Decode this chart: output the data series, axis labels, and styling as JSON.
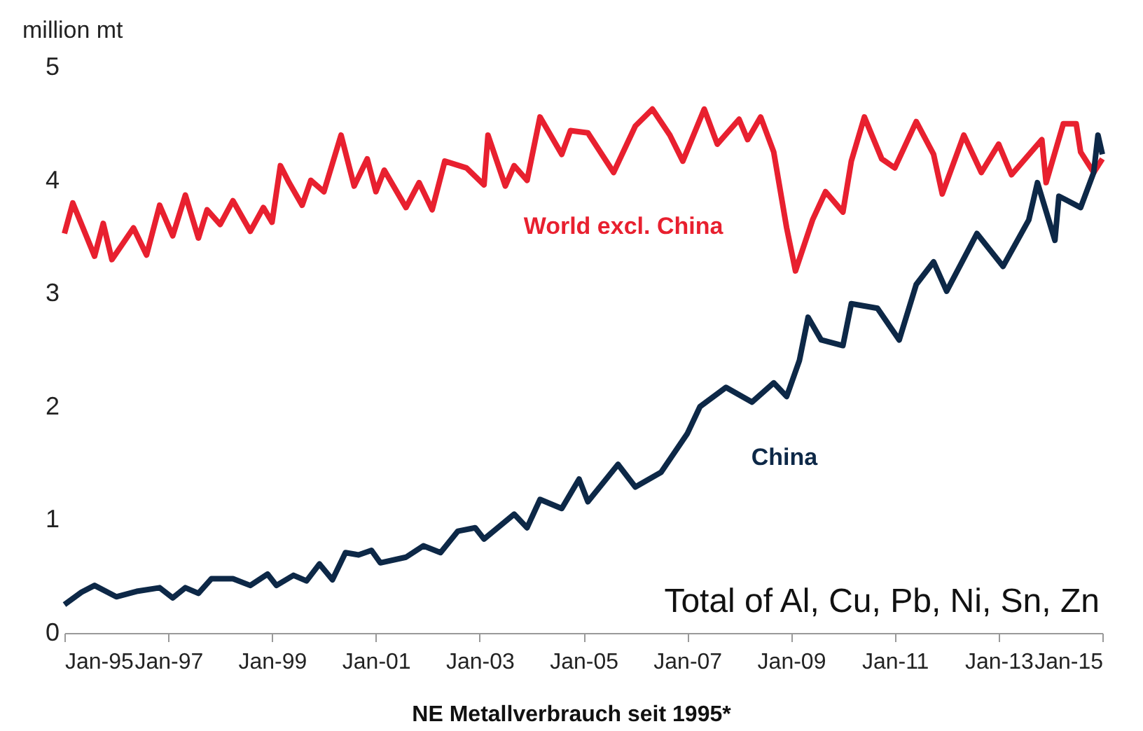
{
  "chart_data": {
    "type": "line",
    "ylabel": "million mt",
    "annotations": [
      "Total of  Al, Cu, Pb, Ni, Sn, Zn",
      "NE Metallverbrauch seit 1995*"
    ],
    "xlim": [
      "1995-01",
      "2015-01"
    ],
    "xticks": [
      {
        "value": "1995-01",
        "label": "Jan-95"
      },
      {
        "value": "1997-01",
        "label": "Jan-97"
      },
      {
        "value": "1999-01",
        "label": "Jan-99"
      },
      {
        "value": "2001-01",
        "label": "Jan-01"
      },
      {
        "value": "2003-01",
        "label": "Jan-03"
      },
      {
        "value": "2005-01",
        "label": "Jan-05"
      },
      {
        "value": "2007-01",
        "label": "Jan-07"
      },
      {
        "value": "2009-01",
        "label": "Jan-09"
      },
      {
        "value": "2011-01",
        "label": "Jan-11"
      },
      {
        "value": "2013-01",
        "label": "Jan-13"
      },
      {
        "value": "2015-01",
        "label": "Jan-15"
      }
    ],
    "ylim": [
      0,
      5
    ],
    "yticks": [
      0,
      1,
      2,
      3,
      4,
      5
    ],
    "grid": false,
    "marker": "none",
    "line_style": "solid",
    "series": [
      {
        "name": "World excl. China",
        "color": "#e8202f",
        "x": [
          "1995-01",
          "1995-03",
          "1995-08",
          "1995-10",
          "1995-12",
          "1996-05",
          "1996-08",
          "1996-11",
          "1997-02",
          "1997-05",
          "1997-08",
          "1997-10",
          "1998-01",
          "1998-04",
          "1998-08",
          "1998-11",
          "1999-01",
          "1999-03",
          "1999-05",
          "1999-08",
          "1999-10",
          "2000-01",
          "2000-05",
          "2000-08",
          "2000-11",
          "2001-01",
          "2001-03",
          "2001-08",
          "2001-11",
          "2002-02",
          "2002-05",
          "2002-10",
          "2003-02",
          "2003-03",
          "2003-07",
          "2003-09",
          "2003-12",
          "2004-03",
          "2004-08",
          "2004-10",
          "2005-02",
          "2005-08",
          "2006-01",
          "2006-05",
          "2006-09",
          "2006-12",
          "2007-05",
          "2007-08",
          "2008-01",
          "2008-03",
          "2008-06",
          "2008-09",
          "2008-12",
          "2009-02",
          "2009-06",
          "2009-09",
          "2010-01",
          "2010-03",
          "2010-06",
          "2010-10",
          "2011-01",
          "2011-06",
          "2011-10",
          "2011-12",
          "2012-05",
          "2012-09",
          "2013-01",
          "2013-04",
          "2013-11",
          "2013-12",
          "2014-04",
          "2014-07",
          "2014-08",
          "2014-11",
          "2015-01"
        ],
        "values": [
          3.53,
          3.8,
          3.33,
          3.62,
          3.3,
          3.58,
          3.34,
          3.78,
          3.51,
          3.87,
          3.49,
          3.74,
          3.61,
          3.82,
          3.55,
          3.76,
          3.63,
          4.13,
          3.98,
          3.78,
          4.0,
          3.9,
          4.4,
          3.95,
          4.19,
          3.9,
          4.09,
          3.76,
          3.98,
          3.74,
          4.17,
          4.11,
          3.96,
          4.4,
          3.95,
          4.13,
          4.0,
          4.56,
          4.23,
          4.44,
          4.42,
          4.07,
          4.48,
          4.63,
          4.4,
          4.17,
          4.63,
          4.32,
          4.54,
          4.36,
          4.56,
          4.25,
          3.58,
          3.2,
          3.65,
          3.9,
          3.72,
          4.17,
          4.56,
          4.19,
          4.11,
          4.52,
          4.23,
          3.88,
          4.4,
          4.07,
          4.32,
          4.05,
          4.36,
          3.98,
          4.5,
          4.5,
          4.25,
          4.07,
          4.19
        ]
      },
      {
        "name": "China",
        "color": "#0d2847",
        "x": [
          "1995-01",
          "1995-05",
          "1995-08",
          "1996-01",
          "1996-06",
          "1996-11",
          "1997-02",
          "1997-05",
          "1997-08",
          "1997-11",
          "1998-04",
          "1998-08",
          "1998-12",
          "1999-02",
          "1999-06",
          "1999-09",
          "1999-12",
          "2000-03",
          "2000-06",
          "2000-09",
          "2000-12",
          "2001-02",
          "2001-08",
          "2001-12",
          "2002-04",
          "2002-08",
          "2002-12",
          "2003-02",
          "2003-09",
          "2003-12",
          "2004-03",
          "2004-08",
          "2004-12",
          "2005-02",
          "2005-09",
          "2006-01",
          "2006-07",
          "2007-01",
          "2007-04",
          "2007-10",
          "2008-04",
          "2008-09",
          "2008-12",
          "2009-03",
          "2009-05",
          "2009-08",
          "2010-01",
          "2010-03",
          "2010-09",
          "2011-02",
          "2011-06",
          "2011-10",
          "2012-01",
          "2012-08",
          "2013-02",
          "2013-08",
          "2013-10",
          "2014-02",
          "2014-03",
          "2014-08",
          "2014-11",
          "2014-12",
          "2015-01"
        ],
        "values": [
          0.25,
          0.36,
          0.42,
          0.32,
          0.37,
          0.4,
          0.31,
          0.4,
          0.35,
          0.48,
          0.48,
          0.42,
          0.52,
          0.42,
          0.51,
          0.46,
          0.61,
          0.47,
          0.71,
          0.69,
          0.73,
          0.62,
          0.67,
          0.77,
          0.71,
          0.9,
          0.93,
          0.83,
          1.05,
          0.93,
          1.18,
          1.1,
          1.36,
          1.16,
          1.49,
          1.29,
          1.42,
          1.76,
          2.0,
          2.17,
          2.04,
          2.21,
          2.09,
          2.41,
          2.79,
          2.59,
          2.54,
          2.91,
          2.87,
          2.59,
          3.08,
          3.28,
          3.02,
          3.53,
          3.24,
          3.65,
          3.98,
          3.47,
          3.86,
          3.76,
          4.07,
          4.4,
          4.23
        ]
      }
    ]
  }
}
